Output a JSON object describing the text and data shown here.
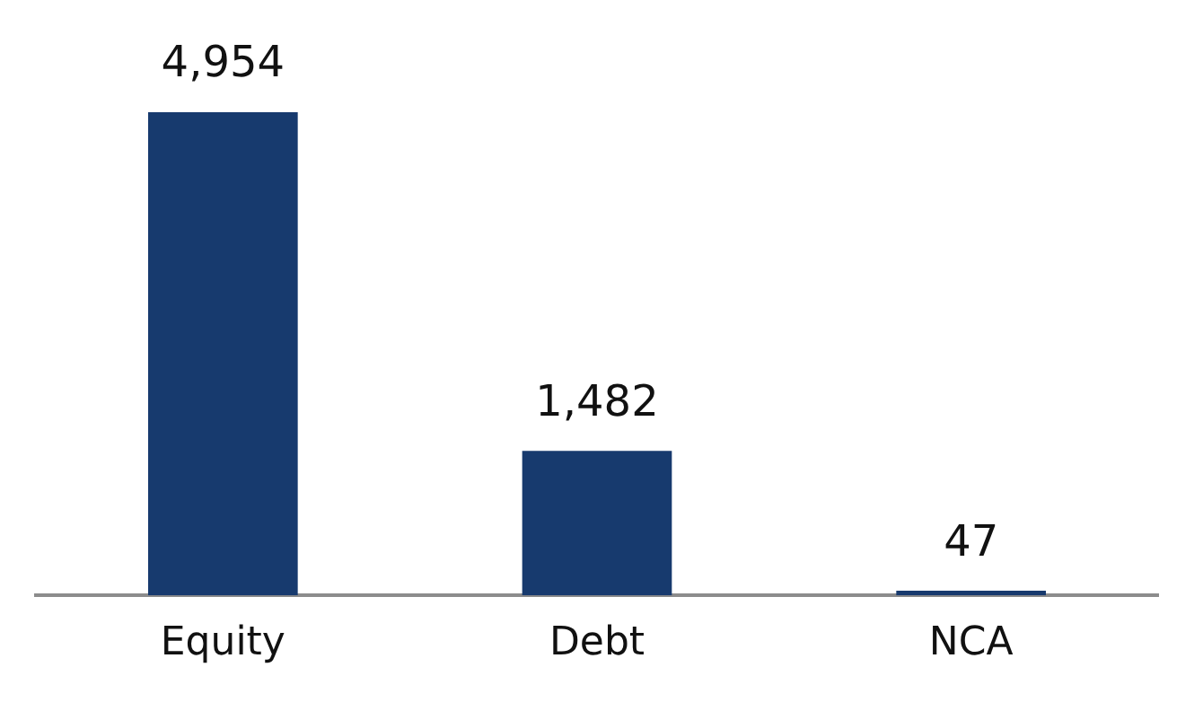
{
  "chart_data": {
    "type": "bar",
    "categories": [
      "Equity",
      "Debt",
      "NCA"
    ],
    "values": [
      4954,
      1482,
      47
    ],
    "value_labels": [
      "4,954",
      "1,482",
      "47"
    ],
    "color": "#173a6e",
    "grid": false,
    "legend": false,
    "tick_labels": "x"
  }
}
